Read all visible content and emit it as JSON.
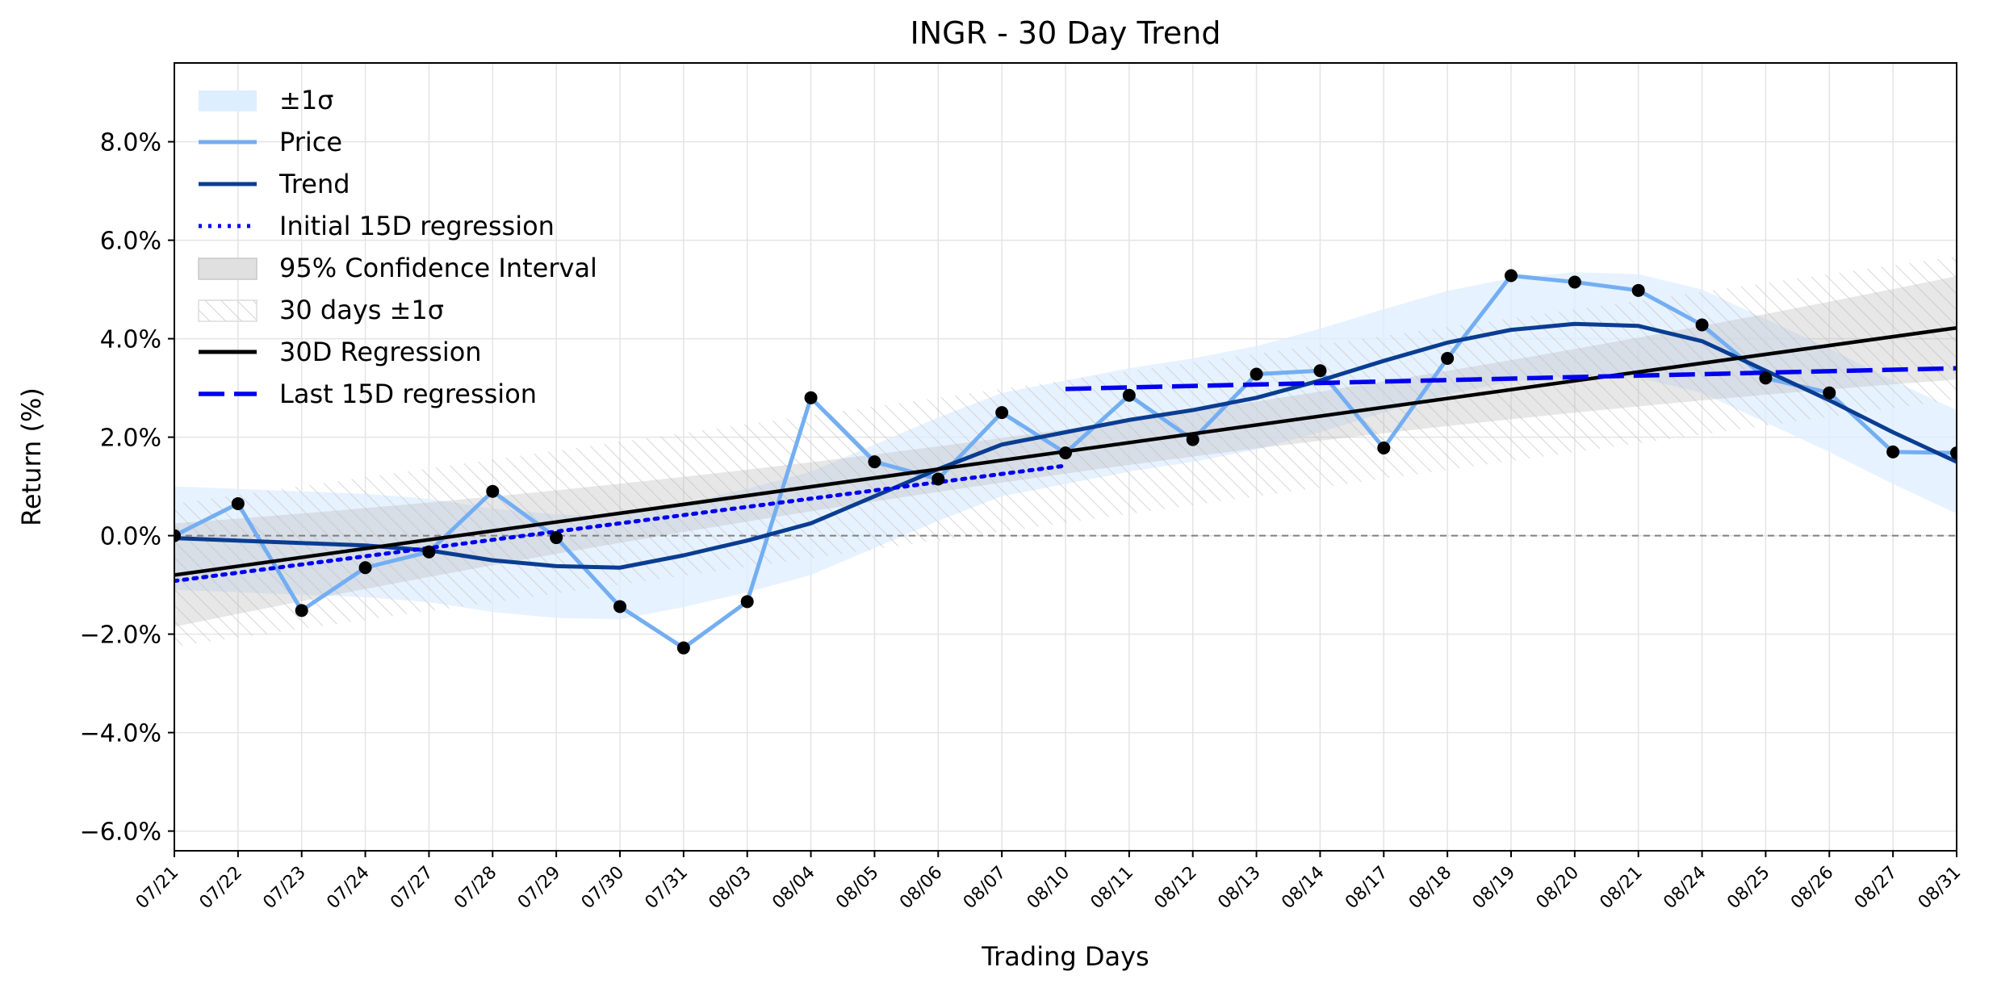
{
  "chart_data": {
    "type": "line",
    "title": "INGR - 30 Day Trend",
    "xlabel": "Trading Days",
    "ylabel": "Return (%)",
    "ylim": [
      -6.4,
      9.6
    ],
    "yticks": [
      -6,
      -4,
      -2,
      0,
      2,
      4,
      6,
      8
    ],
    "ytick_labels": [
      "−6.0%",
      "−4.0%",
      "−2.0%",
      "0.0%",
      "2.0%",
      "4.0%",
      "6.0%",
      "8.0%"
    ],
    "grid": true,
    "legend_position": "top-left",
    "categories": [
      "07/21",
      "07/22",
      "07/23",
      "07/24",
      "07/27",
      "07/28",
      "07/29",
      "07/30",
      "07/31",
      "08/03",
      "08/04",
      "08/05",
      "08/06",
      "08/07",
      "08/10",
      "08/11",
      "08/12",
      "08/13",
      "08/14",
      "08/17",
      "08/18",
      "08/19",
      "08/20",
      "08/21",
      "08/24",
      "08/25",
      "08/26",
      "08/27",
      "08/31"
    ],
    "series": [
      {
        "name": "Price",
        "color": "#74aef2",
        "values": [
          0.0,
          0.65,
          -1.52,
          -0.65,
          -0.33,
          0.9,
          -0.04,
          -1.44,
          -2.28,
          -1.34,
          2.8,
          1.5,
          1.15,
          2.5,
          1.68,
          2.85,
          1.95,
          3.28,
          3.35,
          1.78,
          3.6,
          5.28,
          5.15,
          4.98,
          4.28,
          3.2,
          2.9,
          1.7,
          1.68
        ]
      },
      {
        "name": "Trend",
        "color": "#0a3d91",
        "values": [
          -0.05,
          -0.1,
          -0.15,
          -0.2,
          -0.3,
          -0.5,
          -0.62,
          -0.65,
          -0.4,
          -0.1,
          0.25,
          0.8,
          1.35,
          1.85,
          2.1,
          2.35,
          2.55,
          2.8,
          3.15,
          3.55,
          3.92,
          4.18,
          4.3,
          4.26,
          3.95,
          3.35,
          2.75,
          2.1,
          1.5
        ]
      },
      {
        "name": "30D Regression",
        "color": "#000000",
        "start": -0.8,
        "end": 4.22
      },
      {
        "name": "Initial 15D regression",
        "color": "#0000ee",
        "x_range": [
          0,
          14
        ],
        "start": -0.92,
        "end": 1.42
      },
      {
        "name": "Last 15D regression",
        "color": "#0000ee",
        "x_range": [
          14,
          28
        ],
        "start": 2.98,
        "end": 3.4
      },
      {
        "name": "±1σ",
        "color": "#ddeeff",
        "band_width": 1.05
      },
      {
        "name": "95% Confidence Interval",
        "color": "#bbbbbb",
        "band_start": 1.05,
        "band_end": 1.05
      },
      {
        "name": "30 days ±1σ",
        "color": "#cccccc",
        "band_width": 1.45
      }
    ],
    "zero_line": {
      "value": 0,
      "color": "#808080",
      "style": "dashed"
    }
  }
}
